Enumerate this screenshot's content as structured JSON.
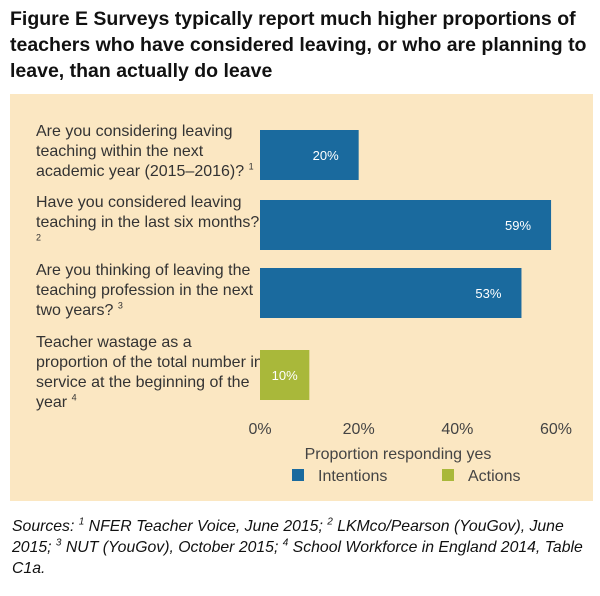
{
  "title": "Figure E  Surveys typically report much higher proportions of teachers who have considered leaving, or who are planning to leave, than actually do leave",
  "chart_data": {
    "type": "bar",
    "orientation": "horizontal",
    "categories": [
      {
        "text": "Are you considering leaving teaching within the next academic year (2015–2016)?",
        "note": "1"
      },
      {
        "text": "Have you considered leaving teaching in the last six months?",
        "note": "2"
      },
      {
        "text": "Are you thinking of leaving the teaching profession in the next two years?",
        "note": "3"
      },
      {
        "text": "Teacher wastage as a proportion of the total number in service at the beginning of the year",
        "note": "4"
      }
    ],
    "values": [
      20,
      59,
      53,
      10
    ],
    "value_labels": [
      "20%",
      "59%",
      "53%",
      "10%"
    ],
    "groups": [
      "Intentions",
      "Intentions",
      "Intentions",
      "Actions"
    ],
    "xlim": [
      0,
      60
    ],
    "xticks": [
      "0%",
      "20%",
      "40%",
      "60%"
    ],
    "xlabel": "Proportion responding yes",
    "legend": [
      {
        "name": "Intentions",
        "color": "#1a6a9e"
      },
      {
        "name": "Actions",
        "color": "#a9b83a"
      }
    ],
    "legend_position": "bottom",
    "grid": false
  },
  "sources": [
    {
      "text": "Sources: ",
      "sup": false
    },
    {
      "text": "1",
      "sup": true
    },
    {
      "text": " NFER Teacher Voice, June 2015; ",
      "sup": false
    },
    {
      "text": "2",
      "sup": true
    },
    {
      "text": " LKMco/Pearson (YouGov), June 2015; ",
      "sup": false
    },
    {
      "text": "3",
      "sup": true
    },
    {
      "text": " NUT (YouGov), October 2015; ",
      "sup": false
    },
    {
      "text": "4",
      "sup": true
    },
    {
      "text": " School Workforce in England 2014, Table C1a.",
      "sup": false
    }
  ]
}
